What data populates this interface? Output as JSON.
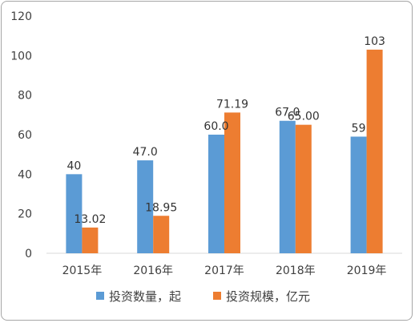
{
  "chart_data": {
    "type": "bar",
    "title": "",
    "xlabel": "",
    "ylabel": "",
    "categories": [
      "2015年",
      "2016年",
      "2017年",
      "2018年",
      "2019年"
    ],
    "ylim": [
      0,
      120
    ],
    "yticks": [
      0,
      20,
      40,
      60,
      80,
      100,
      120
    ],
    "grid": false,
    "legend_position": "bottom",
    "series": [
      {
        "name": "投资数量，起",
        "color": "#5b9bd5",
        "values": [
          40,
          47,
          60,
          67,
          59
        ],
        "labels": [
          "40",
          "47.0",
          "60.0",
          "67.0",
          "59"
        ]
      },
      {
        "name": "投资规模，亿元",
        "color": "#ed7d31",
        "values": [
          13.02,
          18.95,
          71.19,
          65.0,
          103
        ],
        "labels": [
          "13.02",
          "18.95",
          "71.19",
          "65.00",
          "103"
        ]
      }
    ]
  }
}
